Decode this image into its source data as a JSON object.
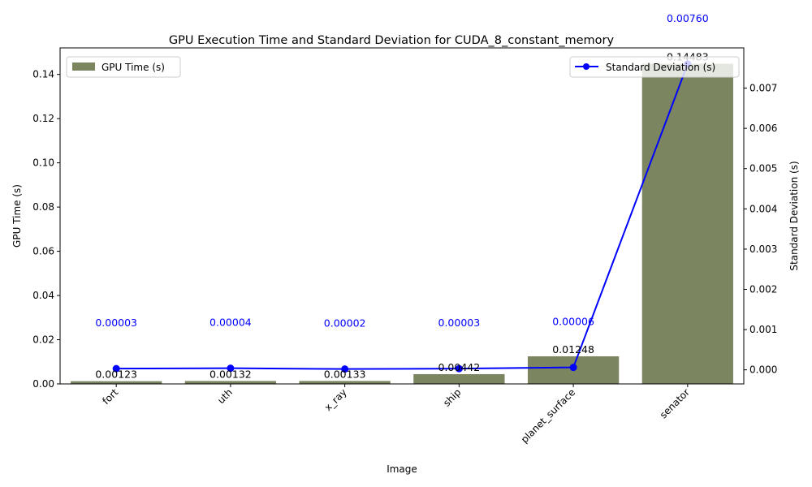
{
  "chart_data": {
    "type": "bar",
    "title": "GPU Execution Time and Standard Deviation for CUDA_8_constant_memory",
    "xlabel": "Image",
    "ylabel": "GPU Time (s)",
    "y2label": "Standard Deviation (s)",
    "categories": [
      "fort",
      "uth",
      "x_ray",
      "ship",
      "planet_surface",
      "senator"
    ],
    "series": [
      {
        "name": "GPU Time (s)",
        "kind": "bar",
        "axis": "left",
        "color": "#7b8660",
        "values": [
          0.00123,
          0.00132,
          0.00133,
          0.00442,
          0.01248,
          0.14483
        ],
        "labels": [
          "0.00123",
          "0.00132",
          "0.00133",
          "0.00442",
          "0.01248",
          "0.14483"
        ]
      },
      {
        "name": "Standard Deviation (s)",
        "kind": "line",
        "axis": "right",
        "color": "#0000ff",
        "values": [
          3e-05,
          4e-05,
          2e-05,
          3e-05,
          6e-05,
          0.0076
        ],
        "labels": [
          "0.00003",
          "0.00004",
          "0.00002",
          "0.00003",
          "0.00006",
          "0.00760"
        ]
      }
    ],
    "ylim": [
      0,
      0.152
    ],
    "y2lim": [
      -0.00035,
      0.008
    ],
    "yticks": [
      "0.00",
      "0.02",
      "0.04",
      "0.06",
      "0.08",
      "0.10",
      "0.12",
      "0.14"
    ],
    "y2ticks": [
      "0.000",
      "0.001",
      "0.002",
      "0.003",
      "0.004",
      "0.005",
      "0.006",
      "0.007"
    ],
    "legend_left": "upper-left",
    "legend_right": "upper-right",
    "grid": false
  }
}
